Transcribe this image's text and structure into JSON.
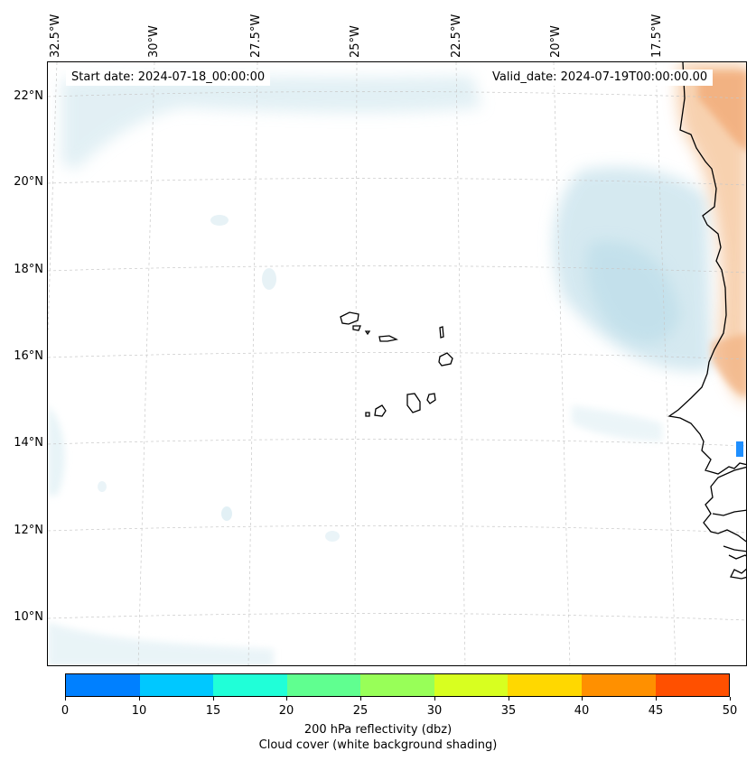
{
  "map": {
    "header": {
      "start_label": "Start date: 2024-07-18_00:00:00",
      "valid_label": "Valid_date: 2024-07-19T00:00:00.00"
    },
    "lon_labels": [
      "32.5°W",
      "30°W",
      "27.5°W",
      "25°W",
      "22.5°W",
      "20°W",
      "17.5°W"
    ],
    "lat_labels": [
      "22°N",
      "20°N",
      "18°N",
      "16°N",
      "14°N",
      "12°N",
      "10°N"
    ],
    "features": [
      "Cape Verde islands",
      "West African coastline",
      "cloud cover shading",
      "reflectivity echo"
    ]
  },
  "colorbar": {
    "ticks": [
      "0",
      "10",
      "15",
      "20",
      "25",
      "30",
      "35",
      "40",
      "45",
      "50"
    ],
    "colors": [
      "#0080ff",
      "#00c8ff",
      "#20ffd8",
      "#60ff90",
      "#98ff58",
      "#d8ff20",
      "#ffd800",
      "#ff9000",
      "#ff5000"
    ],
    "label": "200 hPa reflectivity (dbz)",
    "sublabel": "Cloud cover (white background shading)"
  }
}
